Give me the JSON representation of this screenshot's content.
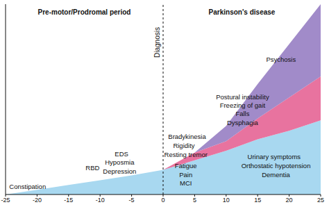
{
  "chart_data": {
    "type": "area",
    "stacked": true,
    "tick_labels": "x",
    "grid": false,
    "x": [
      -25,
      -20,
      -15,
      -10,
      -5,
      0,
      5,
      10,
      15,
      20,
      25
    ],
    "series": [
      {
        "color": "#a8d8f0",
        "values": [
          0,
          2.5,
          5,
          7.5,
          10,
          13,
          18,
          23,
          29,
          33.5,
          39
        ]
      },
      {
        "color": "#e8739f",
        "values": [
          0,
          0,
          0,
          0,
          0,
          0,
          4,
          5,
          11,
          17.5,
          23
        ]
      },
      {
        "color": "#a18bc9",
        "values": [
          0,
          0,
          0,
          0,
          0,
          0,
          0,
          8,
          18,
          28,
          38
        ]
      }
    ],
    "xlim": [
      -25,
      25
    ],
    "xticks": [
      -25,
      -20,
      -15,
      -10,
      -5,
      0,
      5,
      10,
      15,
      20,
      25
    ],
    "ylim": [
      0,
      100
    ],
    "yticks": [],
    "headers": [
      {
        "text": "Pre-motor/Prodromal period",
        "x": -12.5,
        "y": 96
      },
      {
        "text": "Parkinson's disease",
        "x": 12.5,
        "y": 96
      }
    ],
    "reference_lines": [
      {
        "x": 0,
        "label": "Diagnosis"
      }
    ],
    "annotations": [
      {
        "text": "Constipation",
        "x": -21.5,
        "y": 4.3
      },
      {
        "text": "RBD",
        "x": -11.2,
        "y": 14
      },
      {
        "text": "EDS",
        "x": -6.6,
        "y": 21.3
      },
      {
        "text": "Hyposmia",
        "x": -6.9,
        "y": 17
      },
      {
        "text": "Depression",
        "x": -6.9,
        "y": 12.3
      },
      {
        "text": "Bradykinesia",
        "x": 3.8,
        "y": 30.3
      },
      {
        "text": "Rigidity",
        "x": 3.3,
        "y": 25.6
      },
      {
        "text": "Resting tremor",
        "x": 3.6,
        "y": 21
      },
      {
        "text": "Fatigue",
        "x": 3.6,
        "y": 15.2
      },
      {
        "text": "Pain",
        "x": 3.6,
        "y": 10.5
      },
      {
        "text": "MCI",
        "x": 3.6,
        "y": 5.8
      },
      {
        "text": "Urinary symptoms",
        "x": 17.6,
        "y": 19.9
      },
      {
        "text": "Orthostatic hypotension",
        "x": 17.9,
        "y": 15.2
      },
      {
        "text": "Dementia",
        "x": 17.9,
        "y": 10.5
      },
      {
        "text": "Postural instability",
        "x": 12.6,
        "y": 51.3
      },
      {
        "text": "Freezing of gait",
        "x": 12.6,
        "y": 46.9
      },
      {
        "text": "Falls",
        "x": 12.6,
        "y": 42.6
      },
      {
        "text": "Dysphagia",
        "x": 12.6,
        "y": 37.9
      },
      {
        "text": "Psychosis",
        "x": 18.7,
        "y": 71
      }
    ]
  }
}
